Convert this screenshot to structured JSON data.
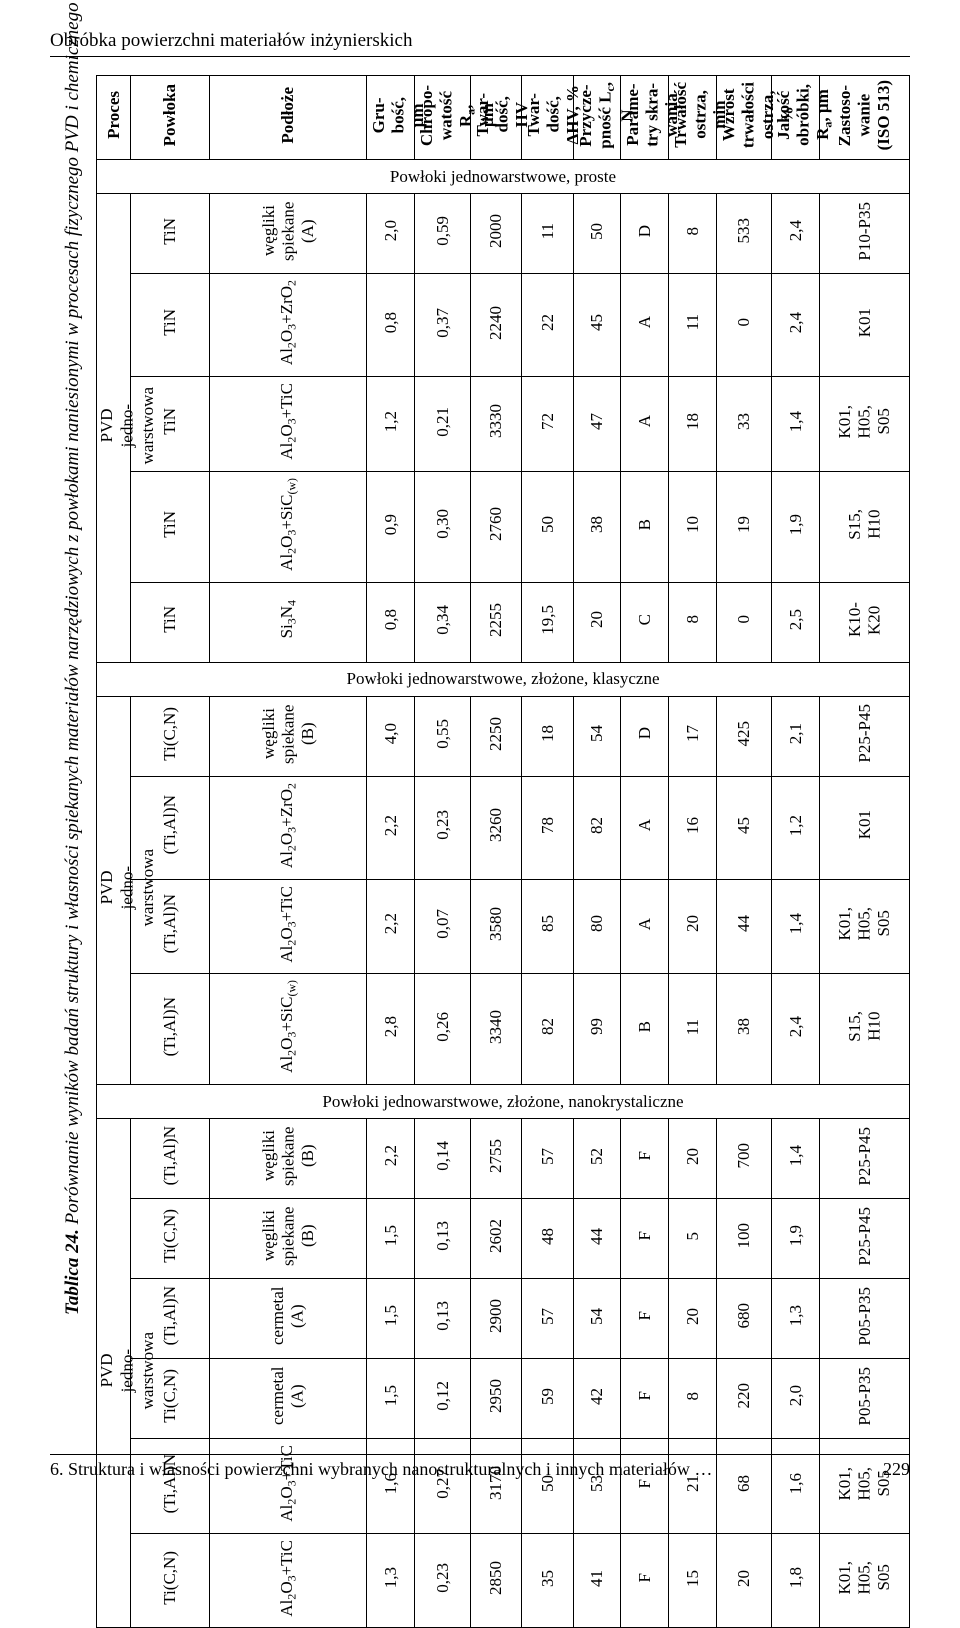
{
  "running_head": "Obróbka powierzchni materiałów inżynierskich",
  "caption_bold": "Tablica 24.",
  "caption_rest": " Porównanie wyników badań struktury i własności spiekanych materiałów narzędziowych z powłokami naniesionymi w procesach fizycznego PVD i chemicznego CVD osadzania z fazy gazowej [29]",
  "headers": {
    "proces": "Proces",
    "powloka": "Powłoka",
    "podloze": "Podłoże",
    "grubosc": "Gru-\nbość,\nµm",
    "chropo": "Chropo-\nwatość R_a,\nµm",
    "twhv": "Twar-\ndość,\nHV",
    "twdhv": "Twar-\ndość,\nΔHV, %",
    "przycz": "Przycze-\npność L_c,\nN",
    "param": "Parame-\ntry skra-\nwania",
    "trwal": "Trwałość\nostrza,\nmin",
    "wzrost": "Wzrost\ntrwałości\nostrza, %",
    "jakosc": "Jakość\nobróbki,\nR_a, µm",
    "zast": "Zastoso-\nwanie\n(ISO 513)"
  },
  "section1": "Powłoki jednowarstwowe, proste",
  "section2": "Powłoki jednowarstwowe, złożone, klasyczne",
  "section3": "Powłoki jednowarstwowe, złożone, nanokrystaliczne",
  "proc_label": "PVD\njedno-\nwarstwowa",
  "rows1": [
    {
      "pow": "TiN",
      "pod": "wegliki_A",
      "g": "2,0",
      "ra": "0,59",
      "hv": "2000",
      "dhv": "11",
      "lc": "50",
      "par": "D",
      "tr": "8",
      "wz": "533",
      "ja": "2,4",
      "z": "P10-P35"
    },
    {
      "pow": "TiN",
      "pod": "al2o3_zro2",
      "g": "0,8",
      "ra": "0,37",
      "hv": "2240",
      "dhv": "22",
      "lc": "45",
      "par": "A",
      "tr": "11",
      "wz": "0",
      "ja": "2,4",
      "z": "K01"
    },
    {
      "pow": "TiN",
      "pod": "al2o3_tic",
      "g": "1,2",
      "ra": "0,21",
      "hv": "3330",
      "dhv": "72",
      "lc": "47",
      "par": "A",
      "tr": "18",
      "wz": "33",
      "ja": "1,4",
      "z": "K01, H05, S05"
    },
    {
      "pow": "TiN",
      "pod": "al2o3_sicw",
      "g": "0,9",
      "ra": "0,30",
      "hv": "2760",
      "dhv": "50",
      "lc": "38",
      "par": "B",
      "tr": "10",
      "wz": "19",
      "ja": "1,9",
      "z": "S15, H10"
    },
    {
      "pow": "TiN",
      "pod": "si3n4",
      "g": "0,8",
      "ra": "0,34",
      "hv": "2255",
      "dhv": "19,5",
      "lc": "20",
      "par": "C",
      "tr": "8",
      "wz": "0",
      "ja": "2,5",
      "z": "K10-K20"
    }
  ],
  "rows2": [
    {
      "pow": "Ti(C,N)",
      "pod": "wegliki_B",
      "g": "4,0",
      "ra": "0,55",
      "hv": "2250",
      "dhv": "18",
      "lc": "54",
      "par": "D",
      "tr": "17",
      "wz": "425",
      "ja": "2,1",
      "z": "P25-P45"
    },
    {
      "pow": "(Ti,Al)N",
      "pod": "al2o3_zro2",
      "g": "2,2",
      "ra": "0,23",
      "hv": "3260",
      "dhv": "78",
      "lc": "82",
      "par": "A",
      "tr": "16",
      "wz": "45",
      "ja": "1,2",
      "z": "K01"
    },
    {
      "pow": "(Ti,Al)N",
      "pod": "al2o3_tic",
      "g": "2,2",
      "ra": "0,07",
      "hv": "3580",
      "dhv": "85",
      "lc": "80",
      "par": "A",
      "tr": "20",
      "wz": "44",
      "ja": "1,4",
      "z": "K01, H05, S05"
    },
    {
      "pow": "(Ti,Al)N",
      "pod": "al2o3_sicw",
      "g": "2,8",
      "ra": "0,26",
      "hv": "3340",
      "dhv": "82",
      "lc": "99",
      "par": "B",
      "tr": "11",
      "wz": "38",
      "ja": "2,4",
      "z": "S15, H10"
    }
  ],
  "rows3": [
    {
      "pow": "(Ti,Al)N",
      "pod": "wegliki_B",
      "g": "2,2",
      "ra": "0,14",
      "hv": "2755",
      "dhv": "57",
      "lc": "52",
      "par": "F",
      "tr": "20",
      "wz": "700",
      "ja": "1,4",
      "z": "P25-P45"
    },
    {
      "pow": "Ti(C,N)",
      "pod": "wegliki_B",
      "g": "1,5",
      "ra": "0,13",
      "hv": "2602",
      "dhv": "48",
      "lc": "44",
      "par": "F",
      "tr": "5",
      "wz": "100",
      "ja": "1,9",
      "z": "P25-P45"
    },
    {
      "pow": "(Ti,Al)N",
      "pod": "cermetal_A",
      "g": "1,5",
      "ra": "0,13",
      "hv": "2900",
      "dhv": "57",
      "lc": "54",
      "par": "F",
      "tr": "20",
      "wz": "680",
      "ja": "1,3",
      "z": "P05-P35"
    },
    {
      "pow": "Ti(C,N)",
      "pod": "cermetal_A",
      "g": "1,5",
      "ra": "0,12",
      "hv": "2950",
      "dhv": "59",
      "lc": "42",
      "par": "F",
      "tr": "8",
      "wz": "220",
      "ja": "2,0",
      "z": "P05-P35"
    },
    {
      "pow": "(Ti,Al)N",
      "pod": "al2o3_tic",
      "g": "1,6",
      "ra": "0,27",
      "hv": "3170",
      "dhv": "50",
      "lc": "53",
      "par": "F",
      "tr": "21",
      "wz": "68",
      "ja": "1,6",
      "z": "K01, H05, S05"
    },
    {
      "pow": "Ti(C,N)",
      "pod": "al2o3_tic",
      "g": "1,3",
      "ra": "0,23",
      "hv": "2850",
      "dhv": "35",
      "lc": "41",
      "par": "F",
      "tr": "15",
      "wz": "20",
      "ja": "1,8",
      "z": "K01, H05, S05"
    }
  ],
  "footer_text": "6. Struktura i własności powierzchni wybranych nanostrukturalnych i innych materiałów …",
  "footer_page": "229"
}
